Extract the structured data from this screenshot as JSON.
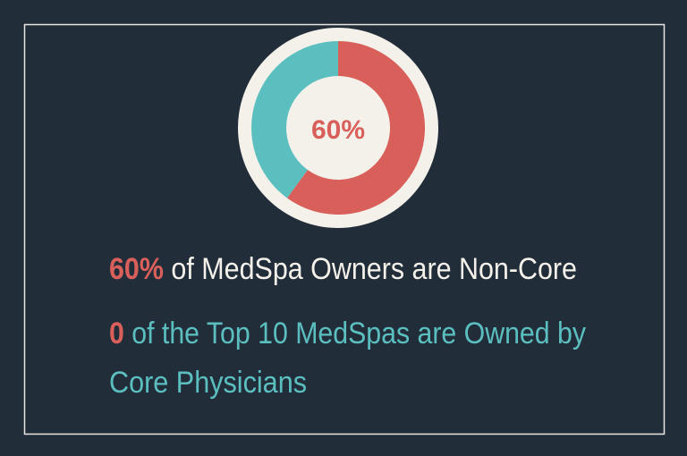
{
  "chart_data": {
    "type": "donut",
    "values": [
      60,
      40
    ],
    "colors": [
      "#d9605a",
      "#5bbfc0"
    ],
    "center_label": "60%"
  },
  "statements": [
    {
      "highlight": "60%",
      "highlight_color": "#d9605a",
      "lines": [
        "of MedSpa Owners are Non-Core"
      ],
      "color": "#f4f1ea"
    },
    {
      "highlight": "0",
      "highlight_color": "#d9605a",
      "lines": [
        "of the Top 10 MedSpas are Owned by",
        "Core Physicians"
      ],
      "color": "#5bbfc0"
    }
  ]
}
